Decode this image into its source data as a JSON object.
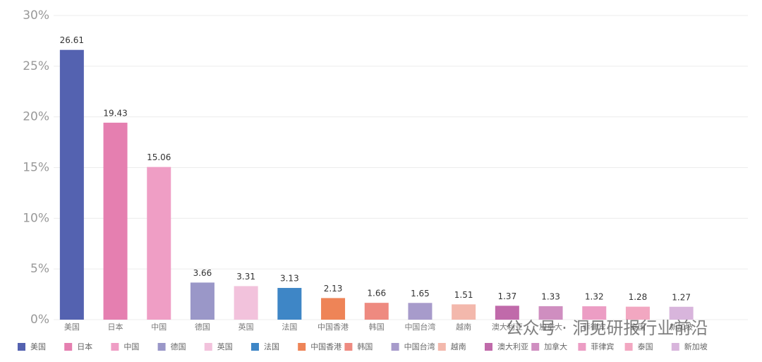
{
  "chart_data": {
    "type": "bar",
    "categories": [
      "美国",
      "日本",
      "中国",
      "德国",
      "英国",
      "法国",
      "中国香港",
      "韩国",
      "中国台湾",
      "越南",
      "澳大利亚",
      "加拿大",
      "菲律宾",
      "泰国",
      "新加坡"
    ],
    "values": [
      26.61,
      19.43,
      15.06,
      3.66,
      3.31,
      3.13,
      2.13,
      1.66,
      1.65,
      1.51,
      1.37,
      1.33,
      1.32,
      1.28,
      1.27
    ],
    "colors": [
      "#5462b0",
      "#e57fb0",
      "#ef9ec5",
      "#9a97c8",
      "#f2c2dc",
      "#3e86c6",
      "#ee8457",
      "#ee8a80",
      "#a79bcb",
      "#f3b8ac",
      "#c06aaa",
      "#cf8ec0",
      "#ec9dc4",
      "#f2a7c1",
      "#d8b5dc"
    ],
    "ylim": [
      0,
      30
    ],
    "yticks": [
      {
        "value": 0,
        "label": "0%"
      },
      {
        "value": 5,
        "label": "5%"
      },
      {
        "value": 10,
        "label": "10%"
      },
      {
        "value": 15,
        "label": "15%"
      },
      {
        "value": 20,
        "label": "20%"
      },
      {
        "value": 25,
        "label": "25%"
      },
      {
        "value": 30,
        "label": "30%"
      }
    ],
    "grid": true,
    "legend": "bottom",
    "watermark": "公众号 · 洞见研报行业前沿"
  }
}
